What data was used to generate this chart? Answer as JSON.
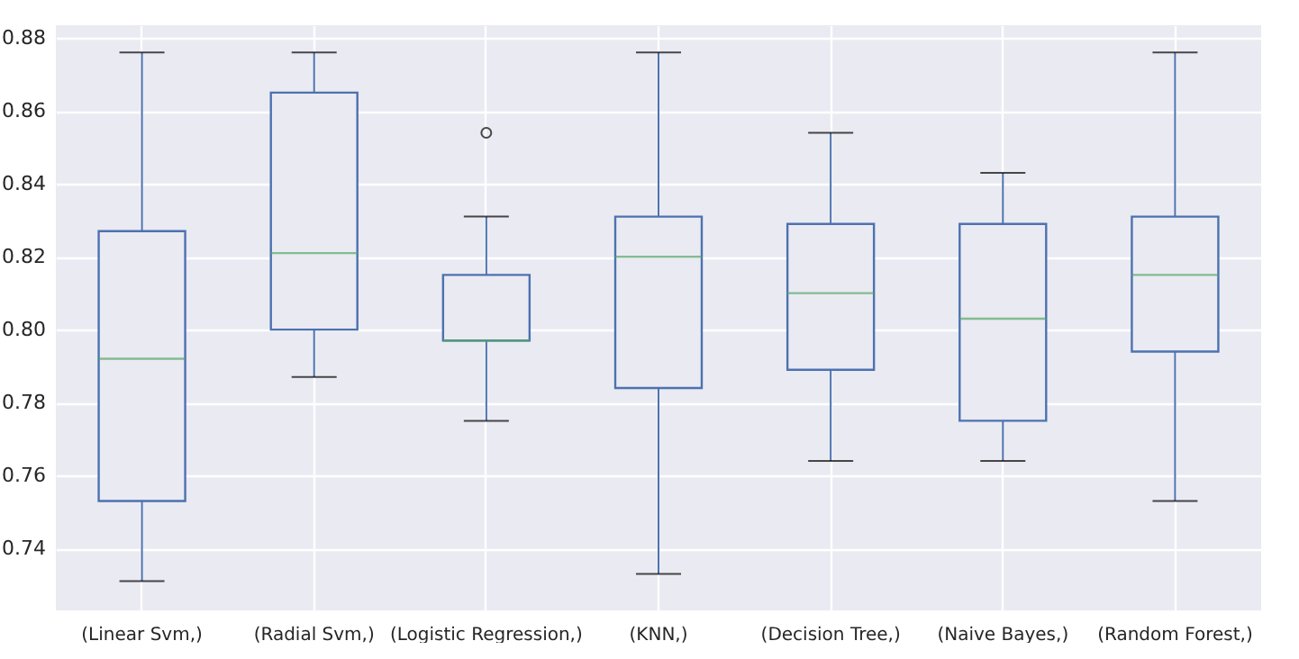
{
  "chart_data": {
    "type": "box",
    "categories": [
      "(Linear Svm,)",
      "(Radial Svm,)",
      "(Logistic Regression,)",
      "(KNN,)",
      "(Decision Tree,)",
      "(Naive Bayes,)",
      "(Random Forest,)"
    ],
    "series": [
      {
        "color": "#4c72b0",
        "boxes": [
          {
            "low": 0.731,
            "q1": 0.753,
            "median": 0.792,
            "q3": 0.827,
            "high": 0.876
          },
          {
            "low": 0.787,
            "q1": 0.8,
            "median": 0.821,
            "q3": 0.865,
            "high": 0.876
          },
          {
            "low": 0.775,
            "q1": 0.797,
            "median": 0.797,
            "q3": 0.815,
            "high": 0.831,
            "outliers": [
              0.854
            ]
          },
          {
            "low": 0.733,
            "q1": 0.784,
            "median": 0.82,
            "q3": 0.831,
            "high": 0.876
          },
          {
            "low": 0.764,
            "q1": 0.789,
            "median": 0.81,
            "q3": 0.829,
            "high": 0.854
          },
          {
            "low": 0.764,
            "q1": 0.775,
            "median": 0.803,
            "q3": 0.829,
            "high": 0.843
          },
          {
            "low": 0.753,
            "q1": 0.794,
            "median": 0.815,
            "q3": 0.831,
            "high": 0.876
          }
        ]
      }
    ],
    "ylim": [
      0.723,
      0.8835
    ],
    "yticks": [
      0.74,
      0.76,
      0.78,
      {
        "value": 0.8,
        "label": "0.80"
      },
      0.82,
      0.84,
      0.86,
      0.88
    ],
    "grid": true
  }
}
